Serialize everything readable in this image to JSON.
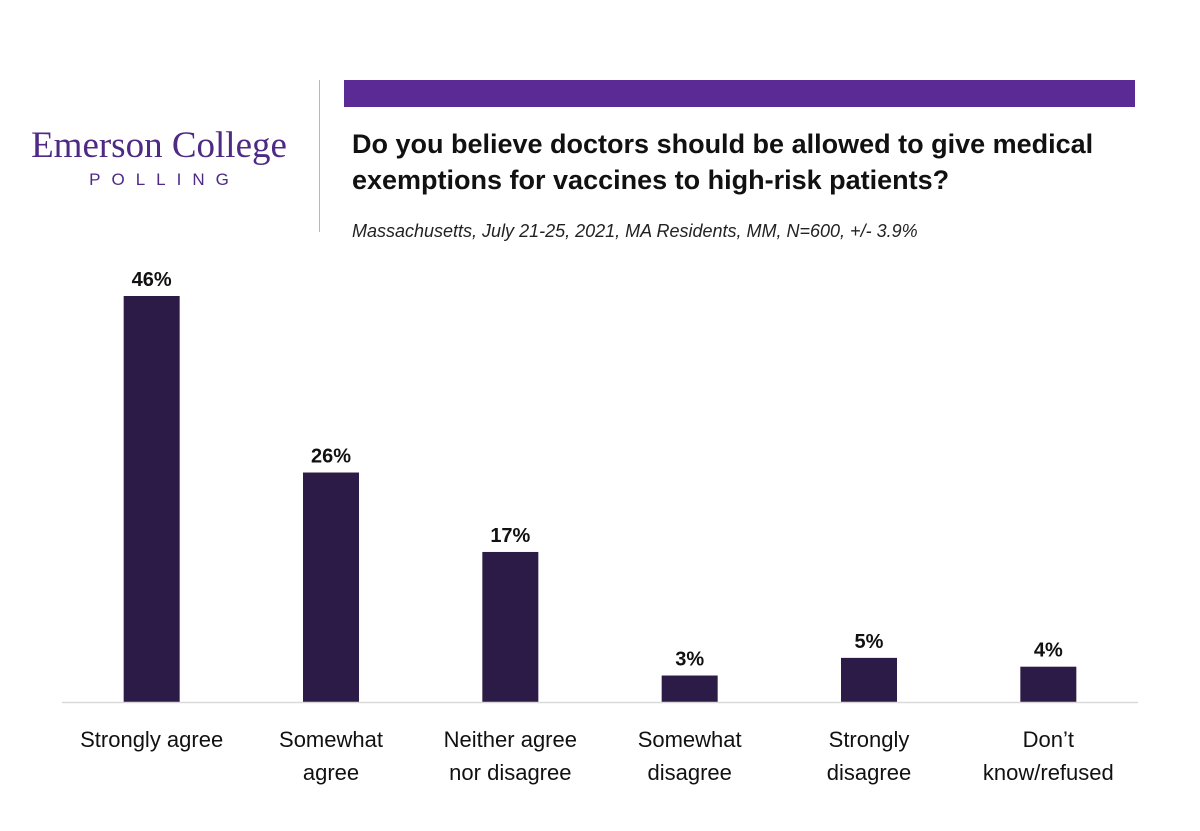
{
  "logo": {
    "main": "Emerson College",
    "sub": "POLLING",
    "color": "#4e2a84"
  },
  "header": {
    "accent_color": "#5b2a94"
  },
  "chart_data": {
    "type": "bar",
    "title": "Do you believe doctors should be allowed to give medical exemptions for vaccines to high-risk patients?",
    "subtitle": "Massachusetts, July 21-25, 2021, MA Residents, MM, N=600, +/- 3.9%",
    "categories": [
      [
        "Strongly agree"
      ],
      [
        "Somewhat",
        "agree"
      ],
      [
        "Neither agree",
        "nor disagree"
      ],
      [
        "Somewhat",
        "disagree"
      ],
      [
        "Strongly",
        "disagree"
      ],
      [
        "Don’t",
        "know/refused"
      ]
    ],
    "values": [
      46,
      26,
      17,
      3,
      5,
      4
    ],
    "data_labels": [
      "46%",
      "26%",
      "17%",
      "3%",
      "5%",
      "4%"
    ],
    "unit": "%",
    "ylim": [
      0,
      46
    ],
    "bar_color": "#2c1a47",
    "baseline_color": "#d9d9d9",
    "grid": false,
    "legend": "none"
  }
}
